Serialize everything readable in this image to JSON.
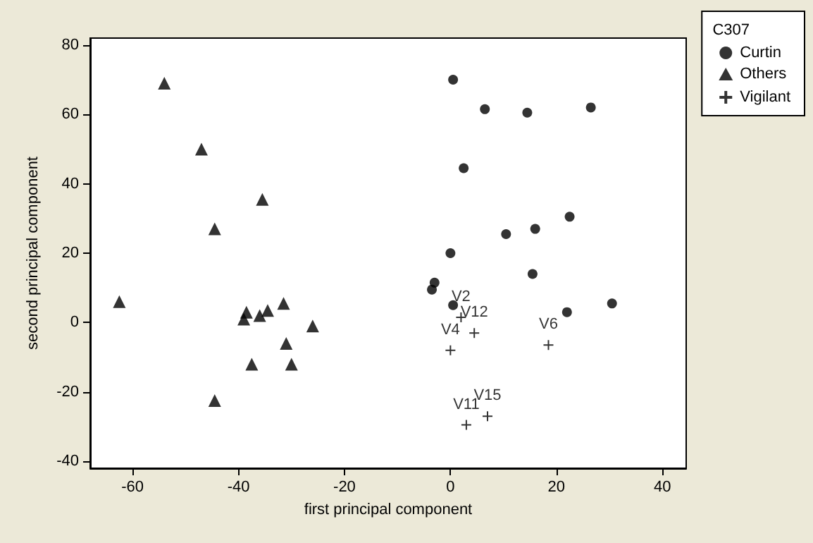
{
  "chart_data": {
    "type": "scatter",
    "xlabel": "first principal component",
    "ylabel": "second principal component",
    "legend_title": "C307",
    "legend": "top right",
    "grid": false,
    "xlim": [
      -68,
      44.5
    ],
    "xticks": [
      -60,
      -40,
      -20,
      0,
      20,
      40
    ],
    "ylim": [
      -42,
      82
    ],
    "yticks": [
      -40,
      -20,
      0,
      20,
      40,
      60,
      80
    ],
    "series": [
      {
        "name": "Curtin",
        "color": "#000000",
        "marker": "circle",
        "x": [
          0.5,
          6.5,
          14.5,
          26.5,
          2.5,
          10.5,
          16,
          22.5,
          0,
          -3.5,
          -3,
          15.5,
          0.5,
          22,
          30.5
        ],
        "values": [
          70,
          61.5,
          60.5,
          62,
          44.5,
          25.5,
          27,
          30.5,
          20,
          9.5,
          11.5,
          14,
          5,
          3,
          5.5
        ]
      },
      {
        "name": "Others",
        "color": "#000000",
        "marker": "triangle",
        "x": [
          -62.5,
          -54,
          -47,
          -35.5,
          -44.5,
          -39,
          -38.5,
          -36,
          -34.5,
          -31.5,
          -26,
          -31,
          -37.5,
          -30,
          -44.5
        ],
        "values": [
          6,
          69,
          50,
          35.5,
          27,
          1,
          3,
          2,
          3.5,
          5.5,
          -1,
          -6,
          -12,
          -12,
          -22.5
        ]
      },
      {
        "name": "Vigilant",
        "color": "#000000",
        "marker": "cross",
        "x": [
          2,
          4.5,
          0,
          18.5,
          3,
          7
        ],
        "values": [
          1.5,
          -3,
          -8,
          -6.5,
          -29.5,
          -27
        ],
        "value_labels": [
          "V2",
          "V12",
          "V4",
          "V6",
          "V11",
          "V15"
        ]
      }
    ]
  }
}
